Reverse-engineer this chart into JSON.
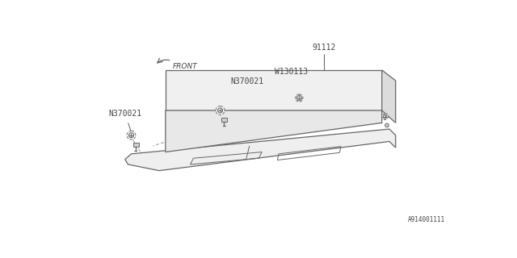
{
  "bg_color": "#ffffff",
  "line_color": "#666666",
  "dashed_color": "#888888",
  "text_color": "#444444",
  "fig_width": 6.4,
  "fig_height": 3.2,
  "dpi": 100,
  "labels": {
    "part_91112": "91112",
    "part_W130113": "W130113",
    "part_N370021_a": "N370021",
    "part_N370021_b": "N370021",
    "front": "FRONT",
    "diagram_id": "A914001111"
  }
}
